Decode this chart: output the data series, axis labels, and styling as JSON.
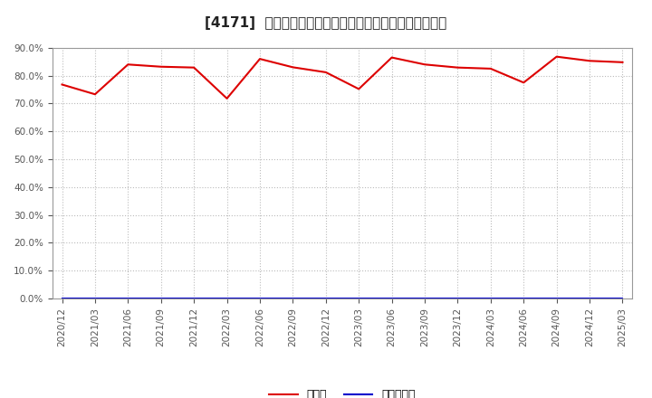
{
  "title": "[4171]  現頲金、有利子負債の総資産に対する比率の推移",
  "x_labels": [
    "2020/12",
    "2021/03",
    "2021/06",
    "2021/09",
    "2021/12",
    "2022/03",
    "2022/06",
    "2022/09",
    "2022/12",
    "2023/03",
    "2023/06",
    "2023/09",
    "2023/12",
    "2024/03",
    "2024/06",
    "2024/09",
    "2024/12",
    "2025/03"
  ],
  "cash_ratio": [
    0.768,
    0.733,
    0.84,
    0.832,
    0.829,
    0.718,
    0.86,
    0.83,
    0.812,
    0.752,
    0.865,
    0.84,
    0.829,
    0.825,
    0.775,
    0.868,
    0.853,
    0.848
  ],
  "debt_ratio": [
    0.0,
    0.0,
    0.0,
    0.0,
    0.0,
    0.0,
    0.0,
    0.0,
    0.0,
    0.0,
    0.0,
    0.0,
    0.0,
    0.0,
    0.0,
    0.0,
    0.0,
    0.0
  ],
  "cash_color": "#dd0000",
  "debt_color": "#0000cc",
  "legend_cash": "現頲金",
  "legend_debt": "有利子負債",
  "ylim": [
    0.0,
    0.9
  ],
  "yticks": [
    0.0,
    0.1,
    0.2,
    0.3,
    0.4,
    0.5,
    0.6,
    0.7,
    0.8,
    0.9
  ],
  "background_color": "#ffffff",
  "grid_color": "#bbbbbb",
  "title_fontsize": 11,
  "label_fontsize": 7.5,
  "legend_fontsize": 9,
  "tick_color": "#555555"
}
